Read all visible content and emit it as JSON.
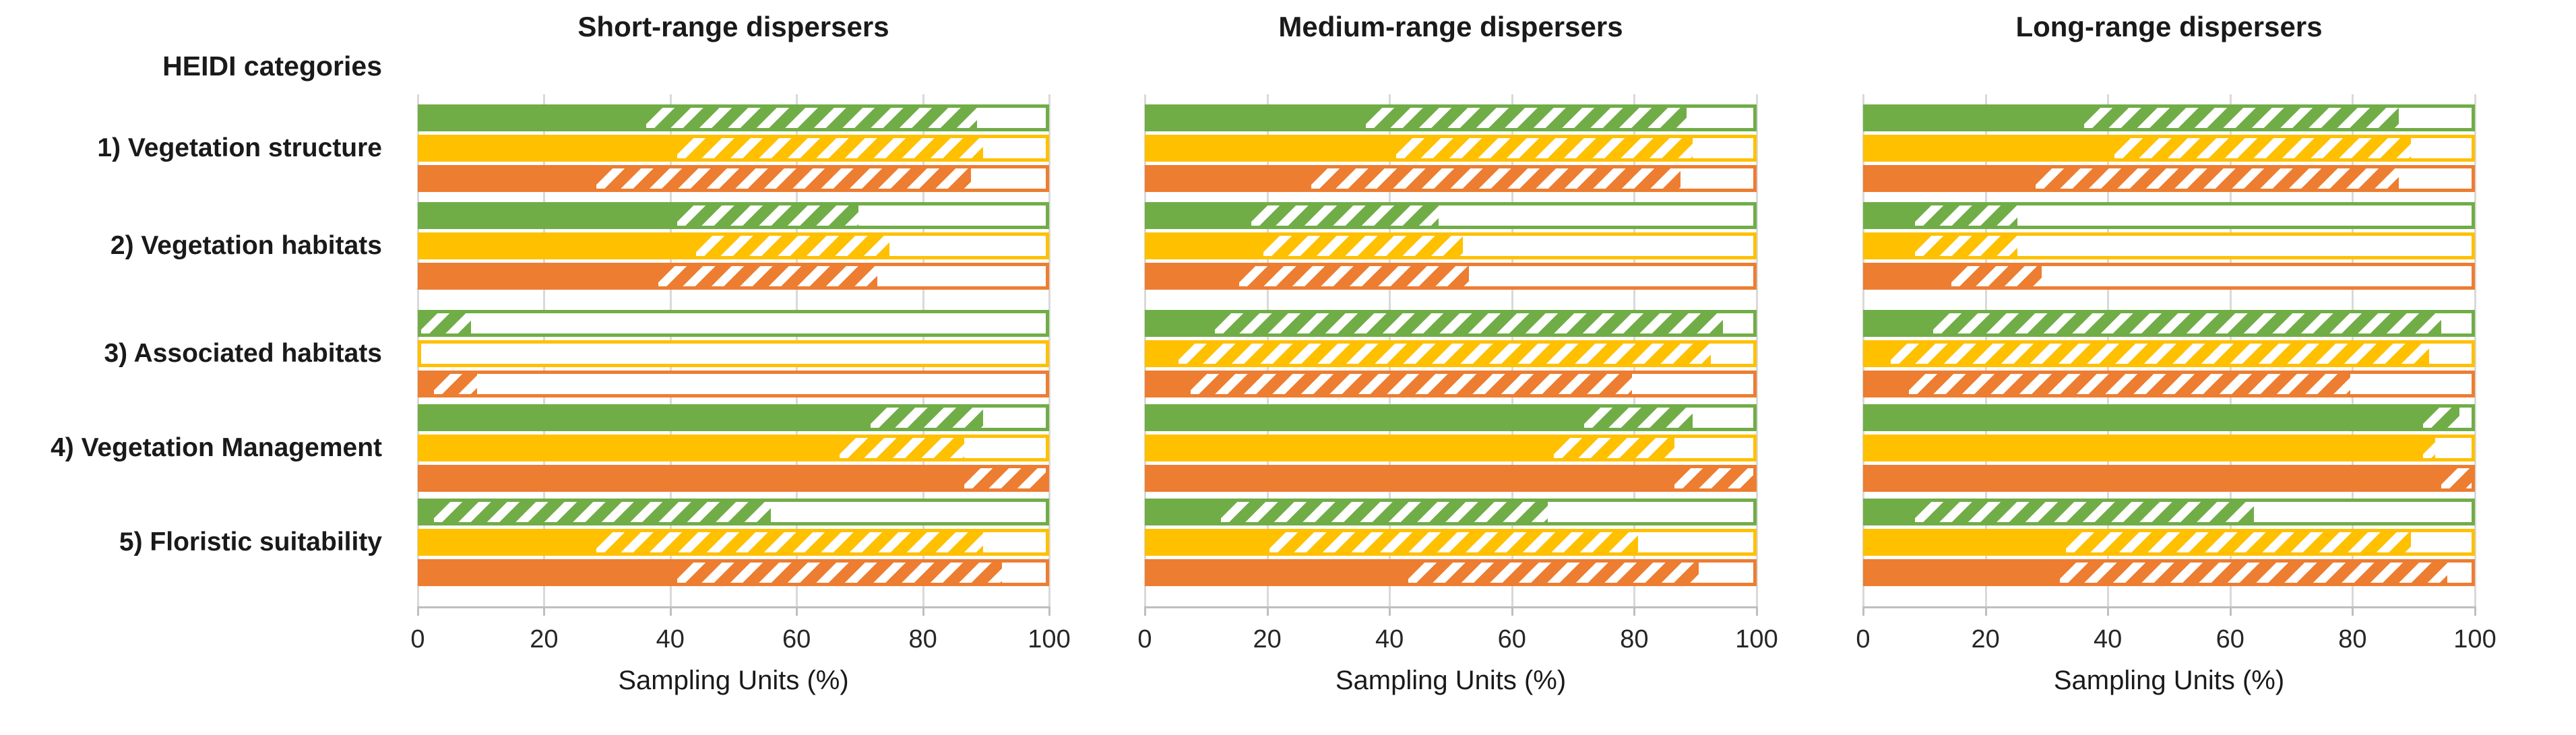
{
  "header": {
    "categories_label": "HEIDI categories"
  },
  "categories": [
    "1) Vegetation structure",
    "2) Vegetation habitats",
    "3) Associated habitats",
    "4) Vegetation Management",
    "5) Floristic suitability"
  ],
  "colors": {
    "green": "#70AD47",
    "yellow": "#FFC000",
    "orange": "#ED7D31",
    "gridline": "#D9D9D9",
    "axis": "#BFBFBF"
  },
  "chart_data": {
    "type": "bar",
    "subtype": "horizontal-stacked-percent",
    "xlabel": "Sampling Units (%)",
    "xlim": [
      0,
      100
    ],
    "axis_ticks": [
      0,
      20,
      40,
      60,
      80,
      100
    ],
    "grid": true,
    "legend": "none",
    "series_pattern_meaning": [
      "solid",
      "hatched",
      "empty-outline"
    ],
    "row_series": [
      "green",
      "yellow",
      "orange"
    ],
    "categories": [
      "1) Vegetation structure",
      "2) Vegetation habitats",
      "3) Associated habitats",
      "4) Vegetation Management",
      "5) Floristic suitability"
    ],
    "panels": [
      {
        "title": "Short-range dispersers",
        "groups": [
          {
            "category": "1) Vegetation structure",
            "bars": [
              {
                "series": "green",
                "solid": 36,
                "hatched": 53,
                "empty": 11
              },
              {
                "series": "yellow",
                "solid": 41,
                "hatched": 49,
                "empty": 10
              },
              {
                "series": "orange",
                "solid": 28,
                "hatched": 60,
                "empty": 12
              }
            ]
          },
          {
            "category": "2) Vegetation habitats",
            "bars": [
              {
                "series": "green",
                "solid": 41,
                "hatched": 29,
                "empty": 30
              },
              {
                "series": "yellow",
                "solid": 44,
                "hatched": 31,
                "empty": 25
              },
              {
                "series": "orange",
                "solid": 38,
                "hatched": 35,
                "empty": 27
              }
            ]
          },
          {
            "category": "3) Associated habitats",
            "bars": [
              {
                "series": "green",
                "solid": 0,
                "hatched": 8,
                "empty": 92
              },
              {
                "series": "yellow",
                "solid": 0,
                "hatched": 0,
                "empty": 100
              },
              {
                "series": "orange",
                "solid": 2,
                "hatched": 7,
                "empty": 91
              }
            ]
          },
          {
            "category": "4) Vegetation Management",
            "bars": [
              {
                "series": "green",
                "solid": 72,
                "hatched": 18,
                "empty": 10
              },
              {
                "series": "yellow",
                "solid": 67,
                "hatched": 20,
                "empty": 13
              },
              {
                "series": "orange",
                "solid": 87,
                "hatched": 13,
                "empty": 0
              }
            ]
          },
          {
            "category": "5) Floristic suitability",
            "bars": [
              {
                "series": "green",
                "solid": 2,
                "hatched": 54,
                "empty": 44
              },
              {
                "series": "yellow",
                "solid": 28,
                "hatched": 62,
                "empty": 10
              },
              {
                "series": "orange",
                "solid": 41,
                "hatched": 52,
                "empty": 7
              }
            ]
          }
        ]
      },
      {
        "title": "Medium-range dispersers",
        "groups": [
          {
            "category": "1) Vegetation structure",
            "bars": [
              {
                "series": "green",
                "solid": 36,
                "hatched": 53,
                "empty": 11
              },
              {
                "series": "yellow",
                "solid": 41,
                "hatched": 49,
                "empty": 10
              },
              {
                "series": "orange",
                "solid": 27,
                "hatched": 61,
                "empty": 12
              }
            ]
          },
          {
            "category": "2) Vegetation habitats",
            "bars": [
              {
                "series": "green",
                "solid": 17,
                "hatched": 31,
                "empty": 52
              },
              {
                "series": "yellow",
                "solid": 19,
                "hatched": 33,
                "empty": 48
              },
              {
                "series": "orange",
                "solid": 15,
                "hatched": 38,
                "empty": 47
              }
            ]
          },
          {
            "category": "3) Associated habitats",
            "bars": [
              {
                "series": "green",
                "solid": 11,
                "hatched": 84,
                "empty": 5
              },
              {
                "series": "yellow",
                "solid": 5,
                "hatched": 88,
                "empty": 7
              },
              {
                "series": "orange",
                "solid": 7,
                "hatched": 73,
                "empty": 20
              }
            ]
          },
          {
            "category": "4) Vegetation Management",
            "bars": [
              {
                "series": "green",
                "solid": 72,
                "hatched": 18,
                "empty": 10
              },
              {
                "series": "yellow",
                "solid": 67,
                "hatched": 20,
                "empty": 13
              },
              {
                "series": "orange",
                "solid": 87,
                "hatched": 13,
                "empty": 0
              }
            ]
          },
          {
            "category": "5) Floristic suitability",
            "bars": [
              {
                "series": "green",
                "solid": 12,
                "hatched": 54,
                "empty": 34
              },
              {
                "series": "yellow",
                "solid": 20,
                "hatched": 61,
                "empty": 19
              },
              {
                "series": "orange",
                "solid": 43,
                "hatched": 48,
                "empty": 9
              }
            ]
          }
        ]
      },
      {
        "title": "Long-range dispersers",
        "groups": [
          {
            "category": "1) Vegetation structure",
            "bars": [
              {
                "series": "green",
                "solid": 36,
                "hatched": 52,
                "empty": 12
              },
              {
                "series": "yellow",
                "solid": 41,
                "hatched": 49,
                "empty": 10
              },
              {
                "series": "orange",
                "solid": 28,
                "hatched": 60,
                "empty": 12
              }
            ]
          },
          {
            "category": "2) Vegetation habitats",
            "bars": [
              {
                "series": "green",
                "solid": 8,
                "hatched": 17,
                "empty": 75
              },
              {
                "series": "yellow",
                "solid": 8,
                "hatched": 17,
                "empty": 75
              },
              {
                "series": "orange",
                "solid": 14,
                "hatched": 15,
                "empty": 71
              }
            ]
          },
          {
            "category": "3) Associated habitats",
            "bars": [
              {
                "series": "green",
                "solid": 11,
                "hatched": 84,
                "empty": 5
              },
              {
                "series": "yellow",
                "solid": 4,
                "hatched": 89,
                "empty": 7
              },
              {
                "series": "orange",
                "solid": 7,
                "hatched": 73,
                "empty": 20
              }
            ]
          },
          {
            "category": "4) Vegetation Management",
            "bars": [
              {
                "series": "green",
                "solid": 92,
                "hatched": 6,
                "empty": 2
              },
              {
                "series": "yellow",
                "solid": 92,
                "hatched": 2,
                "empty": 6
              },
              {
                "series": "orange",
                "solid": 95,
                "hatched": 5,
                "empty": 0
              }
            ]
          },
          {
            "category": "5) Floristic suitability",
            "bars": [
              {
                "series": "green",
                "solid": 8,
                "hatched": 56,
                "empty": 36
              },
              {
                "series": "yellow",
                "solid": 33,
                "hatched": 57,
                "empty": 10
              },
              {
                "series": "orange",
                "solid": 32,
                "hatched": 64,
                "empty": 4
              }
            ]
          }
        ]
      }
    ]
  }
}
